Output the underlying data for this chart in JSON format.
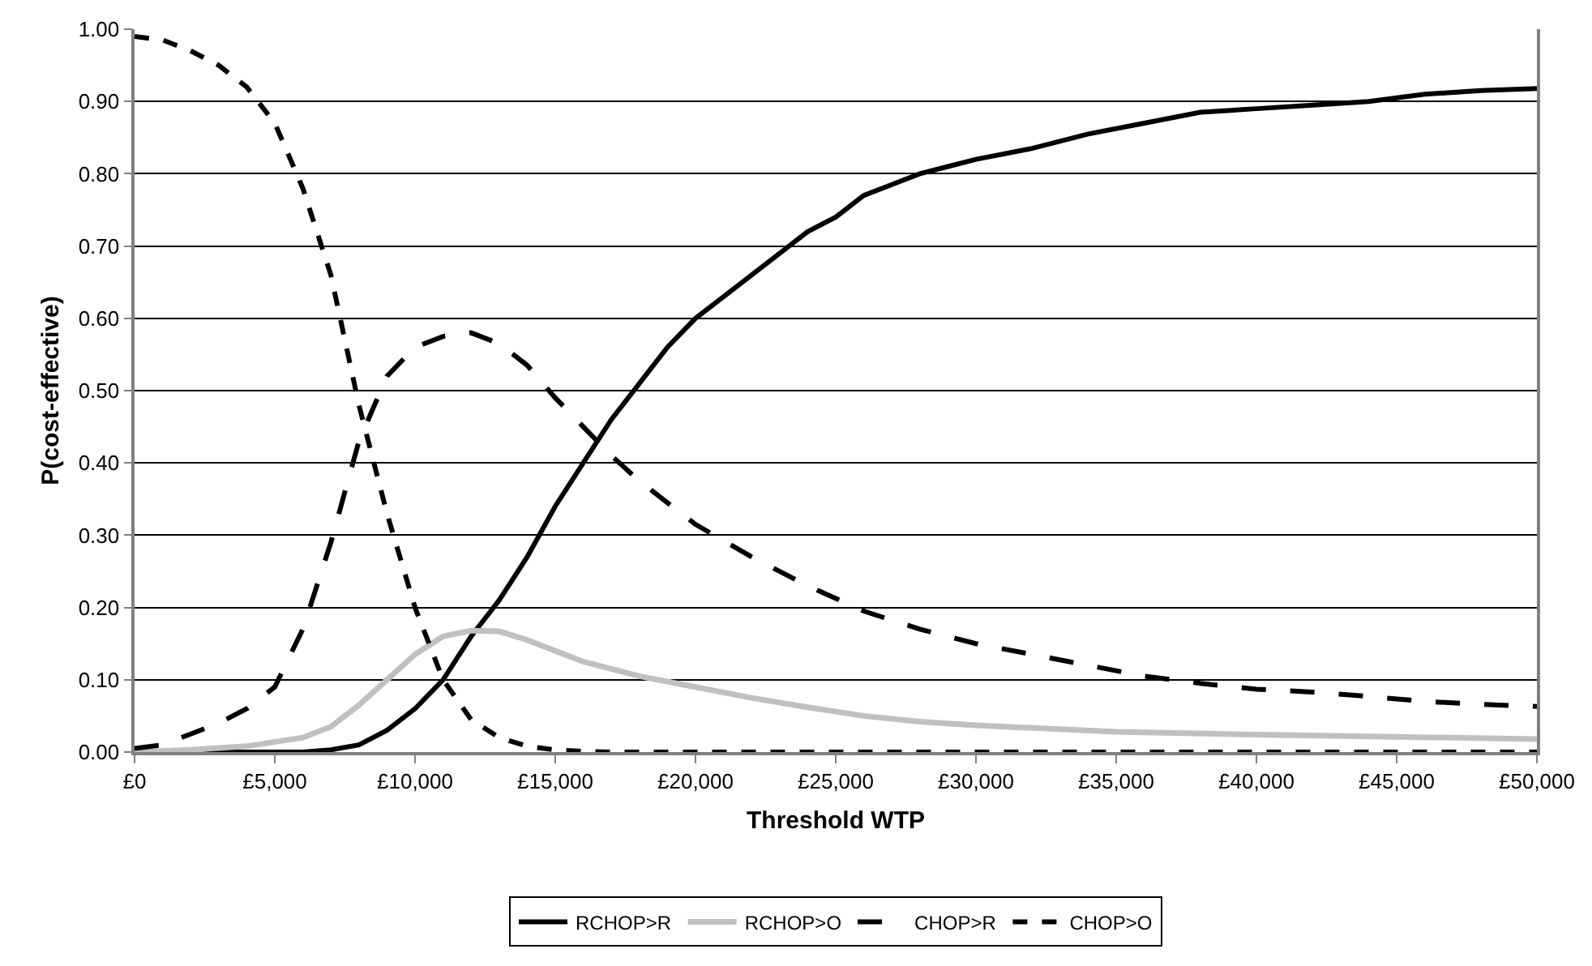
{
  "chart_data": {
    "type": "line",
    "xlabel": "Threshold WTP",
    "ylabel": "P(cost-effective)",
    "xlim": [
      0,
      50000
    ],
    "ylim": [
      0,
      1
    ],
    "xticks": [
      {
        "value": 0,
        "label": "£0"
      },
      {
        "value": 5000,
        "label": "£5,000"
      },
      {
        "value": 10000,
        "label": "£10,000"
      },
      {
        "value": 15000,
        "label": "£15,000"
      },
      {
        "value": 20000,
        "label": "£20,000"
      },
      {
        "value": 25000,
        "label": "£25,000"
      },
      {
        "value": 30000,
        "label": "£30,000"
      },
      {
        "value": 35000,
        "label": "£35,000"
      },
      {
        "value": 40000,
        "label": "£40,000"
      },
      {
        "value": 45000,
        "label": "£45,000"
      },
      {
        "value": 50000,
        "label": "£50,000"
      }
    ],
    "yticks": [
      {
        "value": 0,
        "label": "0.00"
      },
      {
        "value": 0.1,
        "label": "0.10"
      },
      {
        "value": 0.2,
        "label": "0.20"
      },
      {
        "value": 0.3,
        "label": "0.30"
      },
      {
        "value": 0.4,
        "label": "0.40"
      },
      {
        "value": 0.5,
        "label": "0.50"
      },
      {
        "value": 0.6,
        "label": "0.60"
      },
      {
        "value": 0.7,
        "label": "0.70"
      },
      {
        "value": 0.8,
        "label": "0.80"
      },
      {
        "value": 0.9,
        "label": "0.90"
      },
      {
        "value": 1,
        "label": "1.00"
      }
    ],
    "grid": "y",
    "legend": "bottom",
    "marker": "none",
    "series": [
      {
        "name": "RCHOP>R",
        "color": "#000000",
        "line_style": "solid",
        "x": [
          0,
          2000,
          4000,
          6000,
          7000,
          8000,
          9000,
          10000,
          11000,
          12000,
          13000,
          14000,
          15000,
          16000,
          17000,
          18000,
          19000,
          20000,
          21000,
          22000,
          23000,
          24000,
          25000,
          26000,
          27000,
          28000,
          29000,
          30000,
          32000,
          34000,
          36000,
          38000,
          40000,
          42000,
          44000,
          46000,
          48000,
          50000
        ],
        "values": [
          0,
          0,
          0,
          0,
          0.003,
          0.01,
          0.03,
          0.06,
          0.1,
          0.16,
          0.21,
          0.27,
          0.34,
          0.4,
          0.46,
          0.51,
          0.56,
          0.6,
          0.63,
          0.66,
          0.69,
          0.72,
          0.74,
          0.77,
          0.785,
          0.8,
          0.81,
          0.82,
          0.835,
          0.855,
          0.87,
          0.885,
          0.89,
          0.895,
          0.9,
          0.91,
          0.915,
          0.918
        ]
      },
      {
        "name": "RCHOP>O",
        "color": "#c0c0c0",
        "line_style": "solid",
        "x": [
          0,
          2000,
          4000,
          6000,
          7000,
          8000,
          9000,
          10000,
          11000,
          12000,
          13000,
          14000,
          15000,
          16000,
          17000,
          18000,
          20000,
          22000,
          24000,
          26000,
          28000,
          30000,
          35000,
          40000,
          45000,
          50000
        ],
        "values": [
          0,
          0.003,
          0.008,
          0.02,
          0.035,
          0.065,
          0.1,
          0.135,
          0.16,
          0.168,
          0.167,
          0.155,
          0.14,
          0.125,
          0.115,
          0.105,
          0.09,
          0.075,
          0.062,
          0.05,
          0.042,
          0.037,
          0.028,
          0.024,
          0.021,
          0.018
        ]
      },
      {
        "name": "CHOP>R",
        "color": "#000000",
        "line_style": "longdash",
        "x": [
          0,
          1000,
          2000,
          3000,
          4000,
          5000,
          6000,
          7000,
          8000,
          9000,
          10000,
          11000,
          12000,
          13000,
          14000,
          15000,
          16000,
          17000,
          18000,
          19000,
          20000,
          22000,
          24000,
          26000,
          28000,
          30000,
          32000,
          34000,
          36000,
          38000,
          40000,
          42000,
          44000,
          46000,
          48000,
          50000
        ],
        "values": [
          0.005,
          0.01,
          0.025,
          0.04,
          0.06,
          0.09,
          0.17,
          0.29,
          0.43,
          0.52,
          0.56,
          0.575,
          0.58,
          0.565,
          0.535,
          0.49,
          0.45,
          0.41,
          0.375,
          0.345,
          0.315,
          0.27,
          0.23,
          0.195,
          0.17,
          0.15,
          0.135,
          0.12,
          0.105,
          0.095,
          0.087,
          0.083,
          0.077,
          0.07,
          0.066,
          0.063
        ]
      },
      {
        "name": "CHOP>O",
        "color": "#000000",
        "line_style": "dashed",
        "x": [
          0,
          1000,
          2000,
          3000,
          4000,
          5000,
          6000,
          7000,
          8000,
          9000,
          10000,
          11000,
          12000,
          13000,
          14000,
          15000,
          16000,
          17000,
          20000,
          30000,
          40000,
          50000
        ],
        "values": [
          0.99,
          0.985,
          0.97,
          0.95,
          0.92,
          0.87,
          0.78,
          0.66,
          0.48,
          0.33,
          0.2,
          0.1,
          0.045,
          0.02,
          0.008,
          0.003,
          0.001,
          0,
          0,
          0,
          0,
          0
        ]
      }
    ]
  }
}
